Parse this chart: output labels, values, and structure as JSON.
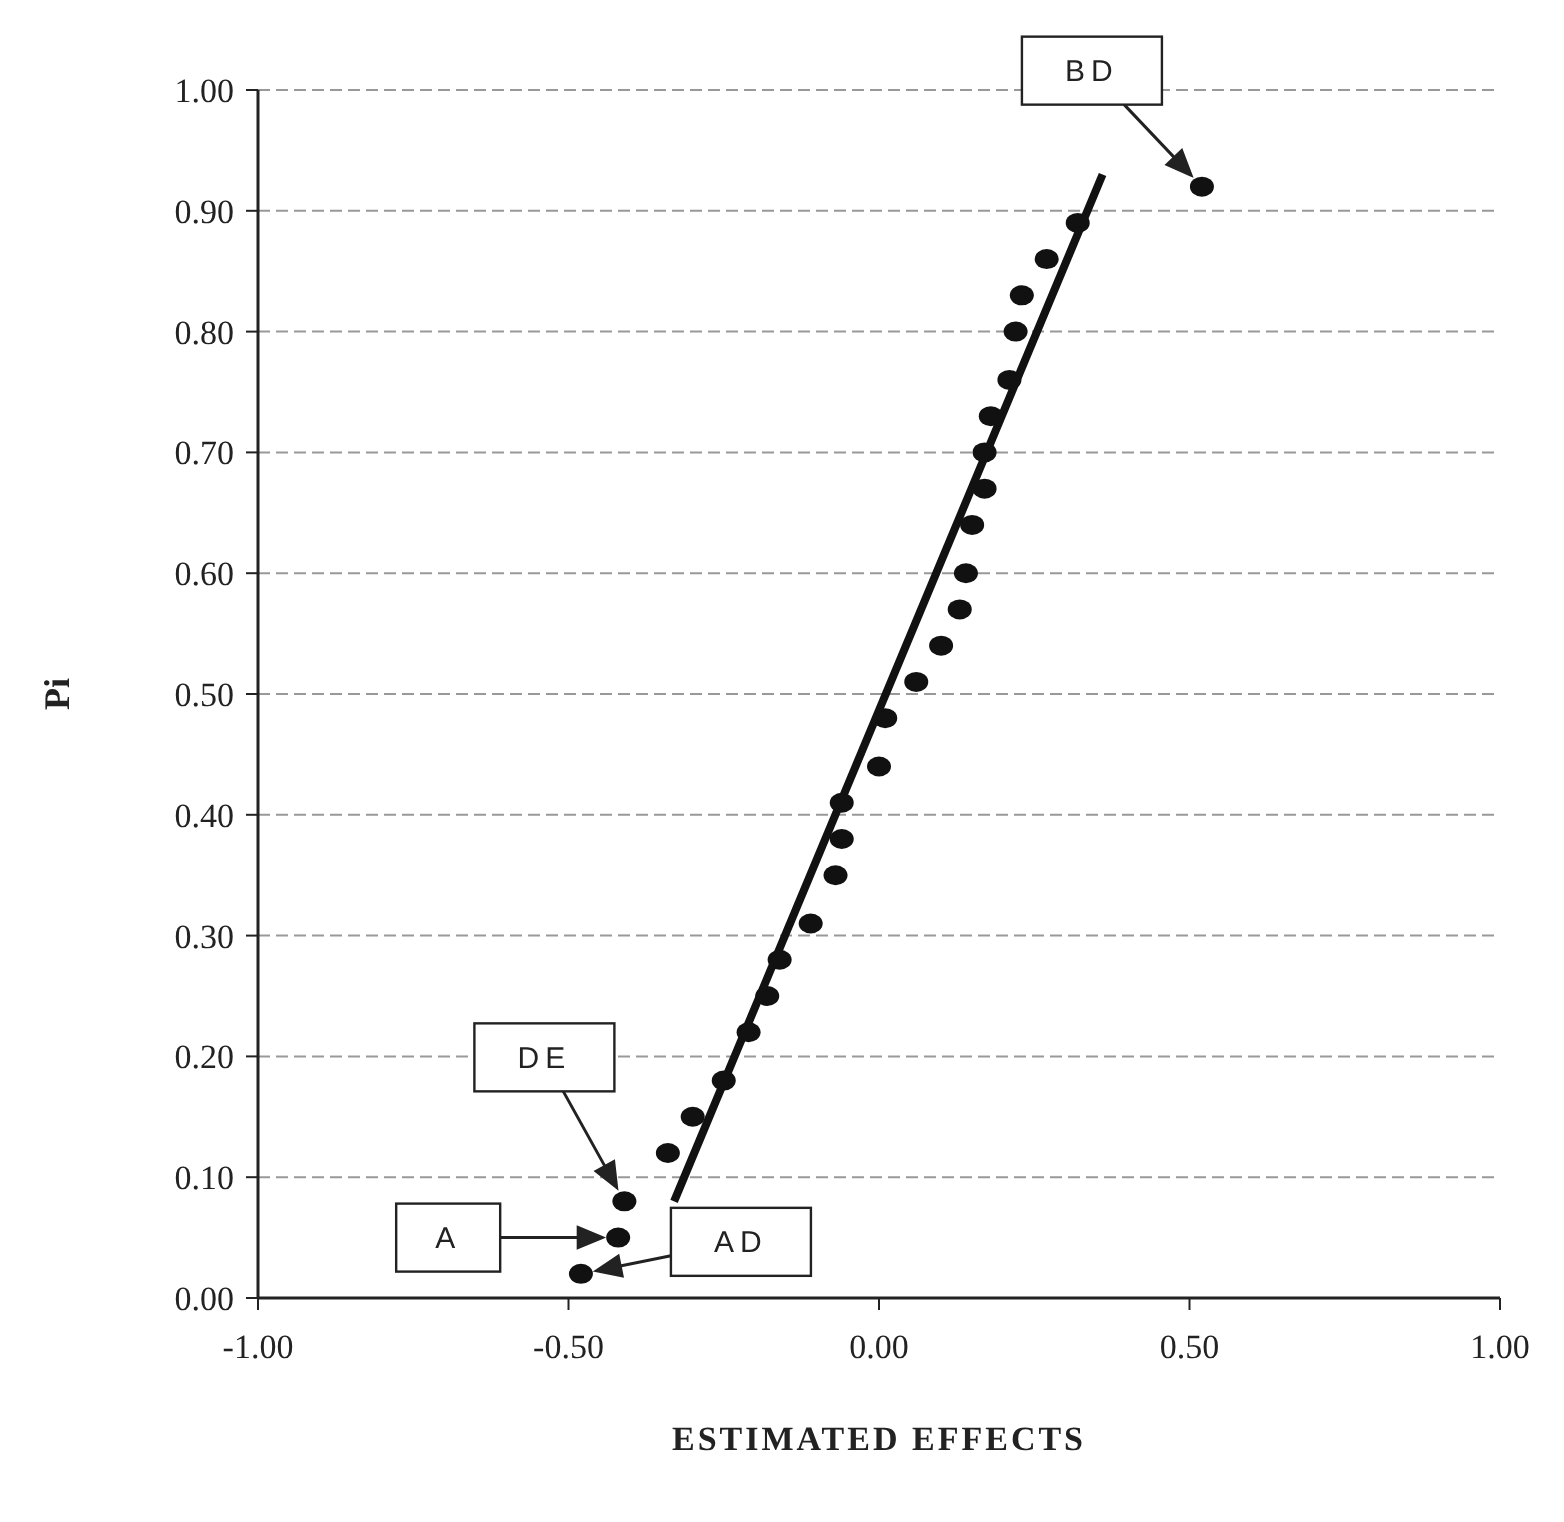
{
  "chart_data": {
    "type": "scatter",
    "xlabel": "ESTIMATED EFFECTS",
    "ylabel": "Pi",
    "xlim": [
      -1,
      1
    ],
    "xticks": [
      {
        "value": -1,
        "label": "-1.00"
      },
      {
        "value": -0.5,
        "label": "-0.50"
      },
      {
        "value": 0,
        "label": "0.00"
      },
      {
        "value": 0.5,
        "label": "0.50"
      },
      {
        "value": 1,
        "label": "1.00"
      }
    ],
    "ylim": [
      0,
      1
    ],
    "yticks": [
      {
        "value": 0,
        "label": "0.00"
      },
      {
        "value": 0.1,
        "label": "0.10"
      },
      {
        "value": 0.2,
        "label": "0.20"
      },
      {
        "value": 0.3,
        "label": "0.30"
      },
      {
        "value": 0.4,
        "label": "0.40"
      },
      {
        "value": 0.5,
        "label": "0.50"
      },
      {
        "value": 0.6,
        "label": "0.60"
      },
      {
        "value": 0.7,
        "label": "0.70"
      },
      {
        "value": 0.8,
        "label": "0.80"
      },
      {
        "value": 0.9,
        "label": "0.90"
      },
      {
        "value": 1,
        "label": "1.00"
      }
    ],
    "grid": "y",
    "marker": "circle",
    "line_style": "solid",
    "series": [
      {
        "type": "scatter",
        "color": "#111111",
        "x": [
          -0.48,
          -0.42,
          -0.41,
          -0.34,
          -0.3,
          -0.25,
          -0.21,
          -0.18,
          -0.16,
          -0.11,
          -0.07,
          -0.06,
          -0.06,
          0.0,
          0.01,
          0.06,
          0.1,
          0.13,
          0.14,
          0.15,
          0.17,
          0.17,
          0.18,
          0.21,
          0.22,
          0.23,
          0.27,
          0.32,
          0.52
        ],
        "values": [
          0.02,
          0.05,
          0.08,
          0.12,
          0.15,
          0.18,
          0.22,
          0.25,
          0.28,
          0.31,
          0.35,
          0.38,
          0.41,
          0.44,
          0.48,
          0.51,
          0.54,
          0.57,
          0.6,
          0.64,
          0.67,
          0.7,
          0.73,
          0.76,
          0.8,
          0.83,
          0.86,
          0.89,
          0.92
        ]
      },
      {
        "type": "line",
        "marker": "none",
        "color": "#111111",
        "x": [
          -0.33,
          0.36
        ],
        "values": [
          0.08,
          0.93
        ]
      }
    ],
    "annotations": [
      "BD",
      "DE",
      "A",
      "AD"
    ]
  }
}
